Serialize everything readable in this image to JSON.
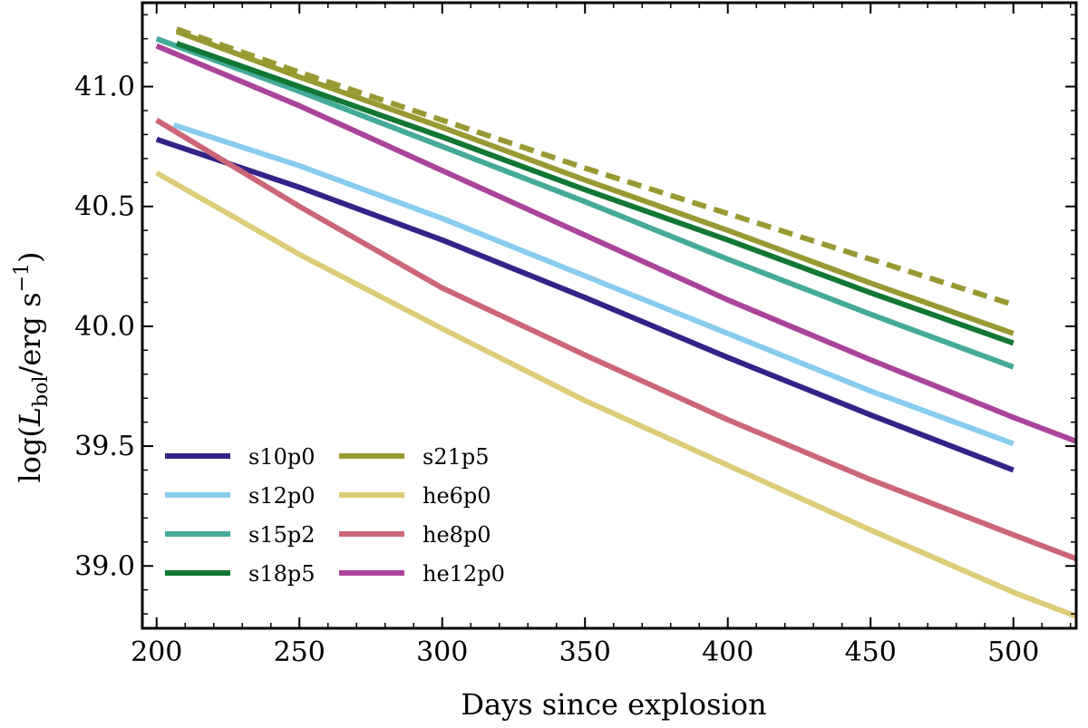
{
  "chart_data": {
    "type": "line",
    "title": "",
    "xlabel": "Days since explosion",
    "ylabel": "log(L_bol / erg s^-1)",
    "ylabel_parts": {
      "prefix": "log(",
      "L": "L",
      "sub": "bol",
      "mid": "/erg s",
      "sup": "−1",
      "suffix": ")"
    },
    "xlim": [
      195,
      522
    ],
    "ylim": [
      38.74,
      41.35
    ],
    "xticks": [
      200,
      250,
      300,
      350,
      400,
      450,
      500
    ],
    "xtick_labels": [
      "200",
      "250",
      "300",
      "350",
      "400",
      "450",
      "500"
    ],
    "yticks": [
      39.0,
      39.5,
      40.0,
      40.5,
      41.0
    ],
    "ytick_labels": [
      "39.0",
      "39.5",
      "40.0",
      "40.5",
      "41.0"
    ],
    "grid": false,
    "legend_position": "bottom-left",
    "series": [
      {
        "name": "s10p0",
        "color": "#332288",
        "style": "solid",
        "x": [
          200,
          250,
          300,
          350,
          400,
          450,
          500
        ],
        "y": [
          40.78,
          40.58,
          40.36,
          40.12,
          39.87,
          39.63,
          39.4
        ]
      },
      {
        "name": "s12p0",
        "color": "#88ccee",
        "style": "solid",
        "x": [
          206,
          250,
          300,
          350,
          400,
          450,
          500
        ],
        "y": [
          40.84,
          40.67,
          40.45,
          40.21,
          39.97,
          39.73,
          39.51
        ]
      },
      {
        "name": "s15p2",
        "color": "#44aa99",
        "style": "solid",
        "x": [
          200,
          250,
          300,
          350,
          400,
          450,
          500
        ],
        "y": [
          41.2,
          40.98,
          40.75,
          40.52,
          40.28,
          40.05,
          39.83
        ]
      },
      {
        "name": "s18p5",
        "color": "#117733",
        "style": "solid",
        "x": [
          207,
          250,
          300,
          350,
          400,
          450,
          500
        ],
        "y": [
          41.18,
          41.0,
          40.79,
          40.57,
          40.36,
          40.14,
          39.93
        ]
      },
      {
        "name": "s21p5",
        "color": "#999933",
        "style": "solid",
        "x": [
          207,
          250,
          300,
          350,
          400,
          450,
          500
        ],
        "y": [
          41.23,
          41.04,
          40.83,
          40.61,
          40.4,
          40.18,
          39.97
        ]
      },
      {
        "name": "s21p5 (dashed)",
        "color": "#999933",
        "style": "dashed",
        "legend": false,
        "x": [
          207,
          250,
          300,
          350,
          400,
          450,
          500
        ],
        "y": [
          41.24,
          41.06,
          40.86,
          40.66,
          40.47,
          40.28,
          40.09
        ]
      },
      {
        "name": "he6p0",
        "color": "#ddcc77",
        "style": "solid",
        "x": [
          200,
          250,
          300,
          350,
          400,
          450,
          500,
          522
        ],
        "y": [
          40.64,
          40.3,
          39.99,
          39.69,
          39.42,
          39.15,
          38.89,
          38.79
        ]
      },
      {
        "name": "he8p0",
        "color": "#cc6677",
        "style": "solid",
        "x": [
          200,
          250,
          300,
          350,
          400,
          450,
          500,
          522
        ],
        "y": [
          40.86,
          40.5,
          40.16,
          39.88,
          39.61,
          39.36,
          39.13,
          39.03
        ]
      },
      {
        "name": "he12p0",
        "color": "#aa4499",
        "style": "solid",
        "x": [
          200,
          250,
          300,
          350,
          400,
          450,
          500,
          522
        ],
        "y": [
          41.17,
          40.92,
          40.65,
          40.38,
          40.11,
          39.86,
          39.62,
          39.52
        ]
      }
    ],
    "legend_order": [
      "s10p0",
      "s12p0",
      "s15p2",
      "s18p5",
      "s21p5",
      "he6p0",
      "he8p0",
      "he12p0"
    ]
  }
}
